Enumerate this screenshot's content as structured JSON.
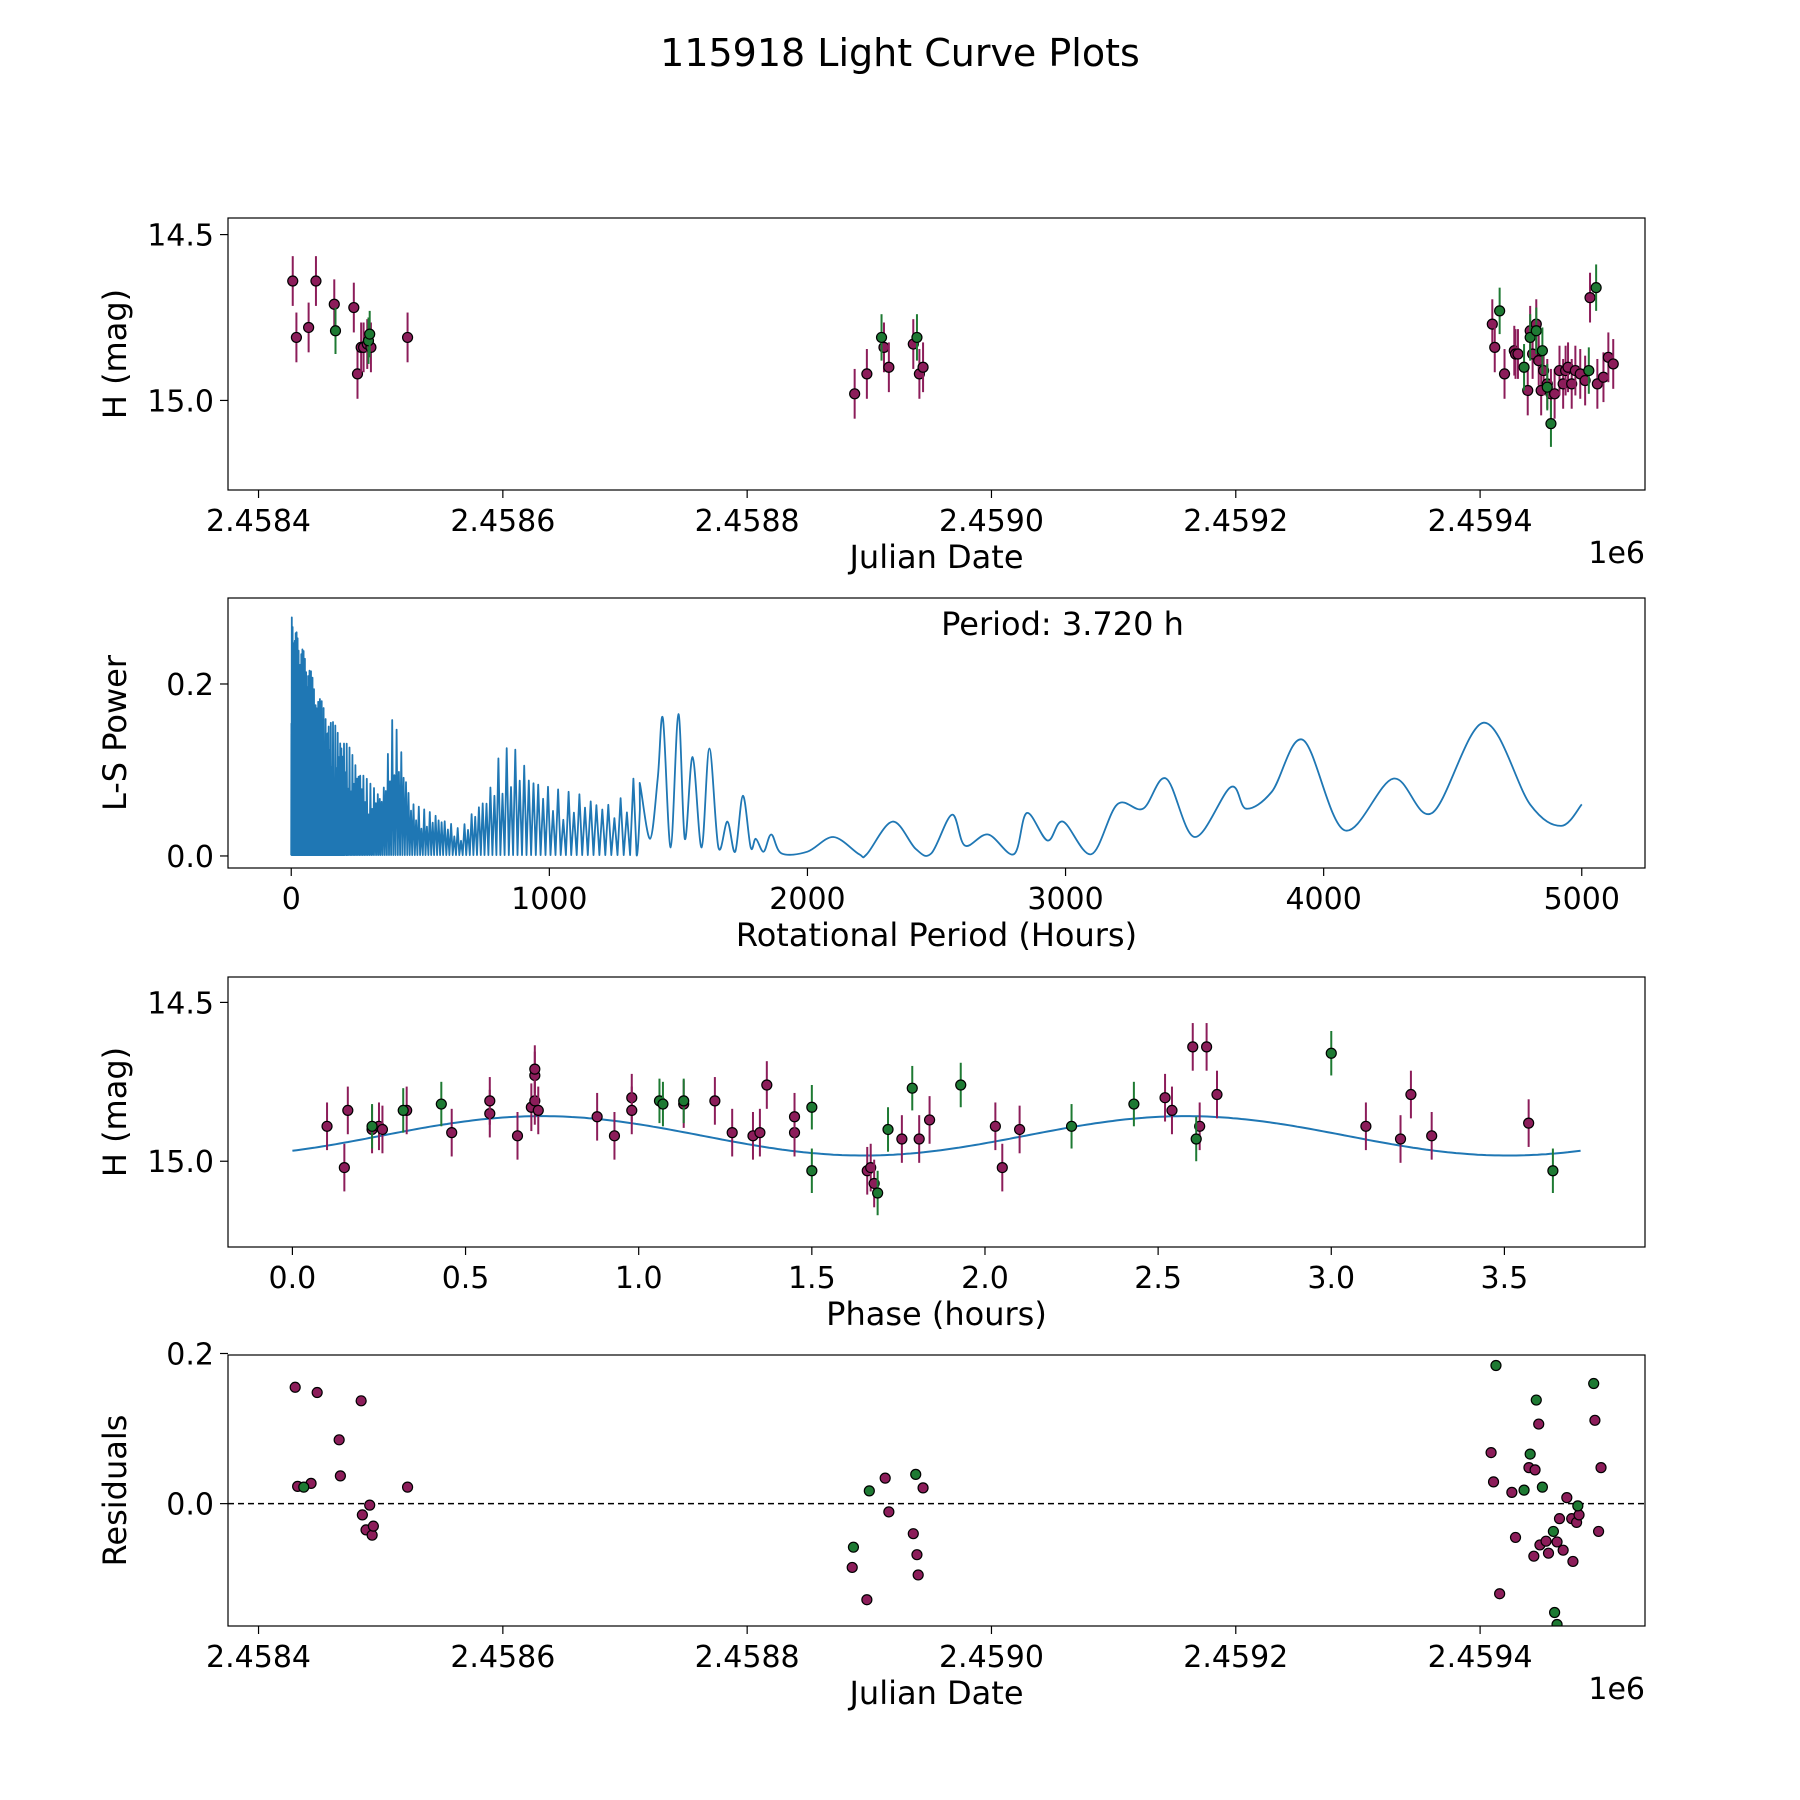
{
  "figure": {
    "title": "115918 Light Curve Plots"
  },
  "colors": {
    "purple": "#8c1d5a",
    "green": "#1e7a33",
    "line": "#1f77b4",
    "marker_edge": "#000000",
    "zero_line": "#000000"
  },
  "chart_data": [
    {
      "id": "lightcurve",
      "type": "scatter",
      "title": "",
      "xlabel": "Julian Date",
      "ylabel": "H (mag)",
      "offset_text": "1e6",
      "xlim": [
        2458375,
        2459535
      ],
      "ylim": [
        14.45,
        15.27
      ],
      "xticks": [
        2458400,
        2458600,
        2458800,
        2459000,
        2459200,
        2459400
      ],
      "xtick_labels": [
        "2.4584",
        "2.4586",
        "2.4588",
        "2.4590",
        "2.4592",
        "2.4594"
      ],
      "yticks": [
        14.5,
        15.0
      ],
      "ytick_labels": [
        "14.5",
        "15.0"
      ],
      "series": [
        {
          "name": "purple",
          "color": "purple",
          "error": 0.15,
          "x": [
            2458428,
            2458431,
            2458441,
            2458447,
            2458462,
            2458478,
            2458481,
            2458484,
            2458486,
            2458489,
            2458492,
            2458522,
            2458888,
            2458898,
            2458912,
            2458916,
            2458936,
            2458941,
            2458944,
            2459410,
            2459412,
            2459420,
            2459428,
            2459429,
            2459431,
            2459439,
            2459441,
            2459443,
            2459446,
            2459448,
            2459450,
            2459452,
            2459455,
            2459458,
            2459461,
            2459465,
            2459468,
            2459470,
            2459472,
            2459475,
            2459478,
            2459482,
            2459486,
            2459490,
            2459496,
            2459501,
            2459505,
            2459509
          ],
          "y": [
            14.64,
            14.81,
            14.78,
            14.64,
            14.71,
            14.72,
            14.92,
            14.84,
            14.84,
            14.83,
            14.84,
            14.81,
            14.98,
            14.92,
            14.84,
            14.9,
            14.83,
            14.92,
            14.9,
            14.77,
            14.84,
            14.92,
            14.85,
            14.86,
            14.86,
            14.97,
            14.79,
            14.86,
            14.77,
            14.88,
            14.97,
            14.91,
            14.95,
            14.98,
            14.98,
            14.91,
            14.95,
            14.91,
            14.9,
            14.95,
            14.91,
            14.92,
            14.94,
            14.69,
            14.95,
            14.93,
            14.87,
            14.89
          ]
        },
        {
          "name": "green",
          "color": "green",
          "error": 0.14,
          "x": [
            2458463,
            2458490,
            2458491,
            2458910,
            2458939,
            2459416,
            2459436,
            2459441,
            2459446,
            2459451,
            2459455,
            2459458,
            2459489,
            2459495
          ],
          "y": [
            14.79,
            14.82,
            14.8,
            14.81,
            14.81,
            14.73,
            14.9,
            14.81,
            14.79,
            14.85,
            14.96,
            15.07,
            14.91,
            14.66
          ]
        }
      ]
    },
    {
      "id": "periodogram",
      "type": "line",
      "title": "",
      "xlabel": "Rotational Period (Hours)",
      "ylabel": "L-S Power",
      "annotation": "Period: 3.720 h",
      "xlim": [
        -245,
        5245
      ],
      "ylim": [
        -0.014,
        0.3
      ],
      "xticks": [
        0,
        1000,
        2000,
        3000,
        4000,
        5000
      ],
      "xtick_labels": [
        "0",
        "1000",
        "2000",
        "3000",
        "4000",
        "5000"
      ],
      "yticks": [
        0.0,
        0.2
      ],
      "ytick_labels": [
        "0.0",
        "0.2"
      ],
      "series": [
        {
          "name": "L-S power",
          "color": "line",
          "dense_region": {
            "x_end": 1350,
            "envelope_x": [
              0,
              30,
              60,
              100,
              150,
              200,
              250,
              300,
              350,
              390,
              420,
              460,
              500,
              560,
              650,
              700,
              760,
              800,
              850,
              900,
              950,
              1000,
              1050,
              1100,
              1150,
              1200,
              1250,
              1300,
              1350
            ],
            "envelope_y": [
              0.28,
              0.25,
              0.23,
              0.19,
              0.16,
              0.14,
              0.11,
              0.085,
              0.075,
              0.165,
              0.13,
              0.065,
              0.055,
              0.05,
              0.03,
              0.055,
              0.08,
              0.12,
              0.13,
              0.11,
              0.09,
              0.08,
              0.075,
              0.075,
              0.07,
              0.065,
              0.06,
              0.09,
              0.09
            ]
          },
          "x": [
            1350,
            1390,
            1420,
            1440,
            1470,
            1500,
            1525,
            1555,
            1590,
            1620,
            1655,
            1690,
            1720,
            1750,
            1780,
            1800,
            1830,
            1860,
            1900,
            2000,
            2100,
            2200,
            2230,
            2330,
            2420,
            2480,
            2560,
            2610,
            2700,
            2800,
            2850,
            2930,
            2990,
            3100,
            3200,
            3300,
            3390,
            3500,
            3640,
            3700,
            3800,
            3920,
            4080,
            4270,
            4420,
            4620,
            4800,
            4920,
            5000
          ],
          "y": [
            0.085,
            0.02,
            0.09,
            0.16,
            0.01,
            0.165,
            0.02,
            0.115,
            0.01,
            0.125,
            0.01,
            0.04,
            0.005,
            0.07,
            0.01,
            0.02,
            0.005,
            0.025,
            0.003,
            0.005,
            0.022,
            0.002,
            0.002,
            0.04,
            0.008,
            0.003,
            0.048,
            0.012,
            0.025,
            0.002,
            0.05,
            0.018,
            0.04,
            0.002,
            0.06,
            0.055,
            0.09,
            0.022,
            0.08,
            0.055,
            0.075,
            0.135,
            0.03,
            0.09,
            0.05,
            0.155,
            0.06,
            0.035,
            0.06
          ]
        }
      ]
    },
    {
      "id": "phase",
      "type": "scatter",
      "title": "",
      "xlabel": "Phase (hours)",
      "ylabel": "H (mag)",
      "xlim": [
        -0.186,
        3.906
      ],
      "ylim": [
        14.42,
        15.27
      ],
      "xticks": [
        0.0,
        0.5,
        1.0,
        1.5,
        2.0,
        2.5,
        3.0,
        3.5
      ],
      "xtick_labels": [
        "0.0",
        "0.5",
        "1.0",
        "1.5",
        "2.0",
        "2.5",
        "3.0",
        "3.5"
      ],
      "yticks": [
        14.5,
        15.0
      ],
      "ytick_labels": [
        "14.5",
        "15.0"
      ],
      "model": {
        "name": "sinusoid fit",
        "color": "line",
        "mean": 14.92,
        "amplitude": 0.062,
        "period": 1.86,
        "peak_phase": 1.65,
        "x_range": [
          0.0,
          3.72
        ]
      },
      "series": [
        {
          "name": "purple",
          "color": "purple",
          "error": 0.15,
          "x": [
            0.1,
            0.15,
            0.16,
            0.23,
            0.25,
            0.26,
            0.33,
            0.46,
            0.57,
            0.57,
            0.65,
            0.69,
            0.7,
            0.7,
            0.7,
            0.71,
            0.88,
            0.93,
            0.98,
            0.98,
            1.13,
            1.22,
            1.27,
            1.33,
            1.35,
            1.37,
            1.45,
            1.45,
            1.66,
            1.67,
            1.68,
            1.76,
            1.81,
            1.84,
            2.03,
            2.05,
            2.1,
            2.52,
            2.54,
            2.6,
            2.62,
            2.64,
            2.67,
            3.1,
            3.2,
            3.23,
            3.29,
            3.57
          ],
          "y": [
            14.89,
            15.02,
            14.84,
            14.9,
            14.89,
            14.9,
            14.84,
            14.91,
            14.85,
            14.81,
            14.92,
            14.83,
            14.81,
            14.73,
            14.71,
            14.84,
            14.86,
            14.92,
            14.8,
            14.84,
            14.82,
            14.81,
            14.91,
            14.92,
            14.91,
            14.76,
            14.91,
            14.86,
            15.03,
            15.02,
            15.07,
            14.93,
            14.93,
            14.87,
            14.89,
            15.02,
            14.9,
            14.8,
            14.84,
            14.64,
            14.89,
            14.64,
            14.79,
            14.89,
            14.93,
            14.79,
            14.92,
            14.88
          ]
        },
        {
          "name": "green",
          "color": "green",
          "error": 0.14,
          "x": [
            0.23,
            0.32,
            0.43,
            1.06,
            1.07,
            1.13,
            1.5,
            1.5,
            1.69,
            1.72,
            1.79,
            1.93,
            2.25,
            2.43,
            2.61,
            3.0,
            3.64
          ],
          "y": [
            14.89,
            14.84,
            14.82,
            14.81,
            14.82,
            14.81,
            14.83,
            15.03,
            15.1,
            14.9,
            14.77,
            14.76,
            14.89,
            14.82,
            14.93,
            14.66,
            15.03
          ]
        }
      ]
    },
    {
      "id": "residuals",
      "type": "scatter",
      "title": "",
      "xlabel": "Julian Date",
      "ylabel": "Residuals",
      "offset_text": "1e6",
      "xlim": [
        2458375,
        2459535
      ],
      "ylim": [
        -0.163,
        0.198
      ],
      "xticks": [
        2458400,
        2458600,
        2458800,
        2459000,
        2459200,
        2459400
      ],
      "xtick_labels": [
        "2.4584",
        "2.4586",
        "2.4588",
        "2.4590",
        "2.4592",
        "2.4594"
      ],
      "yticks": [
        0.0,
        0.2
      ],
      "ytick_labels": [
        "0.0",
        "0.2"
      ],
      "reference_line": {
        "y": 0.0,
        "style": "dashed",
        "color": "zero_line"
      },
      "series": [
        {
          "name": "purple",
          "color": "purple",
          "x": [
            2458430,
            2458432,
            2458443,
            2458448,
            2458466,
            2458467,
            2458484,
            2458485,
            2458488,
            2458491,
            2458493,
            2458494,
            2458522,
            2458886,
            2458898,
            2458913,
            2458916,
            2458936,
            2458939,
            2458940,
            2458944,
            2459409,
            2459411,
            2459416,
            2459426,
            2459429,
            2459440,
            2459444,
            2459445,
            2459448,
            2459449,
            2459454,
            2459456,
            2459463,
            2459465,
            2459468,
            2459471,
            2459475,
            2459476,
            2459479,
            2459481,
            2459494,
            2459497,
            2459499
          ],
          "y": [
            0.155,
            0.023,
            0.027,
            0.148,
            0.085,
            0.037,
            0.137,
            -0.015,
            -0.035,
            -0.002,
            -0.042,
            -0.03,
            0.022,
            -0.085,
            -0.128,
            0.034,
            -0.011,
            -0.04,
            -0.068,
            -0.095,
            0.021,
            0.068,
            0.029,
            -0.12,
            0.015,
            -0.045,
            0.048,
            -0.07,
            0.045,
            0.106,
            -0.055,
            -0.05,
            -0.066,
            -0.051,
            -0.02,
            -0.062,
            0.008,
            -0.02,
            -0.077,
            -0.025,
            -0.015,
            0.111,
            -0.037,
            0.048
          ]
        },
        {
          "name": "green",
          "color": "green",
          "x": [
            2458437,
            2458887,
            2458900,
            2458938,
            2459413,
            2459436,
            2459441,
            2459446,
            2459451,
            2459460,
            2459461,
            2459463,
            2459480,
            2459493
          ],
          "y": [
            0.022,
            -0.058,
            0.017,
            0.039,
            0.184,
            0.018,
            0.066,
            0.138,
            0.022,
            -0.037,
            -0.145,
            -0.161,
            -0.003,
            0.16
          ]
        }
      ]
    }
  ]
}
